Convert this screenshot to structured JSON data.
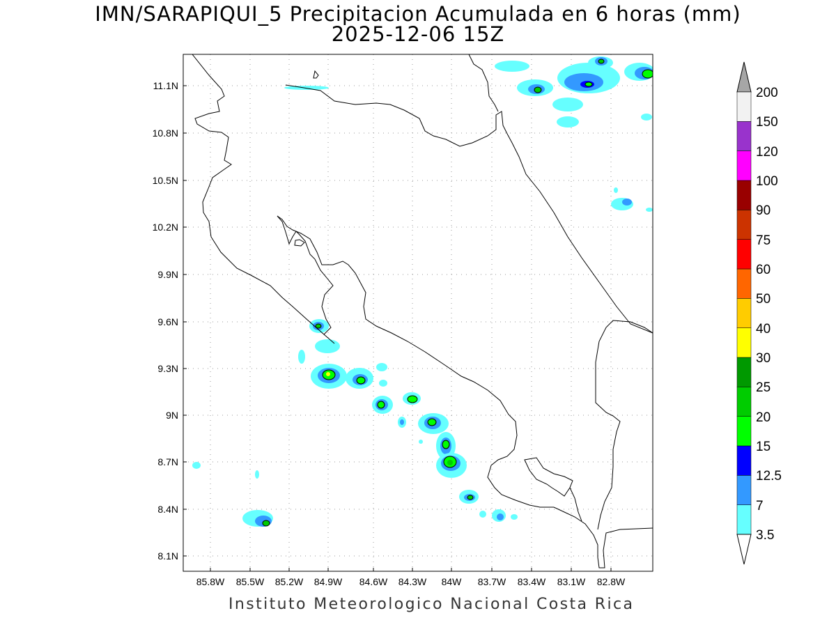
{
  "title_line1": "IMN/SARAPIQUI_5 Precipitacion Acumulada en 6 horas (mm)",
  "title_line2": "2025-12-06 15Z",
  "footer": "Instituto Meteorologico Nacional Costa Rica",
  "lat_ticks": [
    "11.1N",
    "10.8N",
    "10.5N",
    "10.2N",
    "9.9N",
    "9.6N",
    "9.3N",
    "9N",
    "8.7N",
    "8.4N",
    "8.1N"
  ],
  "lon_ticks": [
    "85.8W",
    "85.5W",
    "85.2W",
    "84.9W",
    "84.6W",
    "84.3W",
    "84W",
    "83.7W",
    "83.4W",
    "83.1W",
    "82.8W"
  ],
  "colorbar": {
    "levels": [
      "3.5",
      "7",
      "12.5",
      "15",
      "20",
      "25",
      "30",
      "40",
      "50",
      "60",
      "75",
      "90",
      "100",
      "120",
      "150",
      "200"
    ],
    "colors": [
      "#ffffff",
      "#66ffff",
      "#3399ff",
      "#0000ff",
      "#00ff00",
      "#00cc00",
      "#009900",
      "#ffff00",
      "#ffcc00",
      "#ff6600",
      "#ff0000",
      "#cc3300",
      "#990000",
      "#ff00ff",
      "#9933cc",
      "#f2f2f2",
      "#a6a6a6"
    ]
  }
}
